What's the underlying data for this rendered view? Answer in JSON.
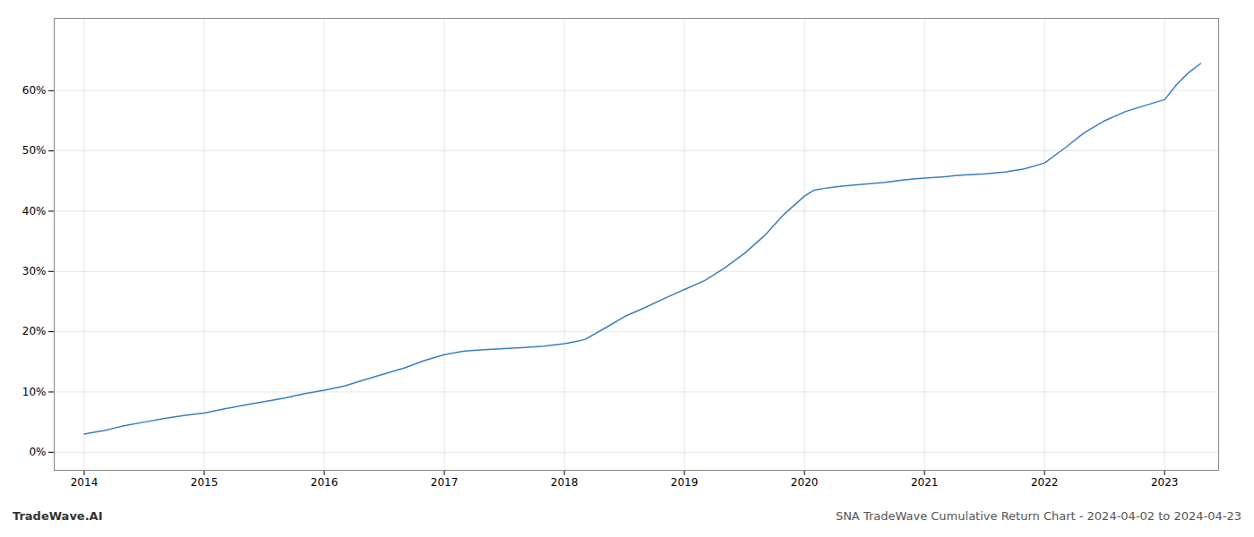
{
  "chart_data": {
    "type": "line",
    "title": "SNA TradeWave Cumulative Return Chart - 2024-04-02 to 2024-04-23",
    "annotations": [
      "TradeWave.AI"
    ],
    "color": "#3a7ebf",
    "x": [
      2014.0,
      2014.08,
      2014.17,
      2014.25,
      2014.33,
      2014.5,
      2014.67,
      2014.83,
      2015.0,
      2015.17,
      2015.33,
      2015.5,
      2015.67,
      2015.83,
      2016.0,
      2016.17,
      2016.33,
      2016.5,
      2016.67,
      2016.83,
      2017.0,
      2017.17,
      2017.33,
      2017.5,
      2017.67,
      2017.83,
      2018.0,
      2018.08,
      2018.17,
      2018.33,
      2018.5,
      2018.67,
      2018.83,
      2019.0,
      2019.17,
      2019.33,
      2019.5,
      2019.67,
      2019.83,
      2020.0,
      2020.08,
      2020.17,
      2020.25,
      2020.33,
      2020.5,
      2020.67,
      2020.83,
      2021.0,
      2021.17,
      2021.25,
      2021.33,
      2021.5,
      2021.67,
      2021.83,
      2022.0,
      2022.17,
      2022.33,
      2022.5,
      2022.67,
      2022.83,
      2023.0,
      2023.1,
      2023.2,
      2023.3
    ],
    "values": [
      3.0,
      3.3,
      3.6,
      4.0,
      4.4,
      5.0,
      5.6,
      6.1,
      6.5,
      7.2,
      7.8,
      8.4,
      9.0,
      9.7,
      10.3,
      11.0,
      12.0,
      13.0,
      14.0,
      15.2,
      16.2,
      16.8,
      17.0,
      17.2,
      17.4,
      17.6,
      18.0,
      18.3,
      18.7,
      20.5,
      22.5,
      24.0,
      25.5,
      27.0,
      28.5,
      30.5,
      33.0,
      36.0,
      39.5,
      42.5,
      43.5,
      43.8,
      44.0,
      44.2,
      44.5,
      44.8,
      45.2,
      45.5,
      45.7,
      45.9,
      46.0,
      46.2,
      46.5,
      47.0,
      48.0,
      50.5,
      53.0,
      55.0,
      56.5,
      57.5,
      58.5,
      61.0,
      63.0,
      64.5
    ],
    "xlim": [
      2013.75,
      2023.45
    ],
    "ylim": [
      -3,
      72
    ],
    "xticks": [
      2014,
      2015,
      2016,
      2017,
      2018,
      2019,
      2020,
      2021,
      2022,
      2023
    ],
    "yticks": [
      {
        "value": 0,
        "label": "0%"
      },
      {
        "value": 10,
        "label": "10%"
      },
      {
        "value": 20,
        "label": "20%"
      },
      {
        "value": 30,
        "label": "30%"
      },
      {
        "value": 40,
        "label": "40%"
      },
      {
        "value": 50,
        "label": "50%"
      },
      {
        "value": 60,
        "label": "60%"
      }
    ],
    "grid": true
  }
}
